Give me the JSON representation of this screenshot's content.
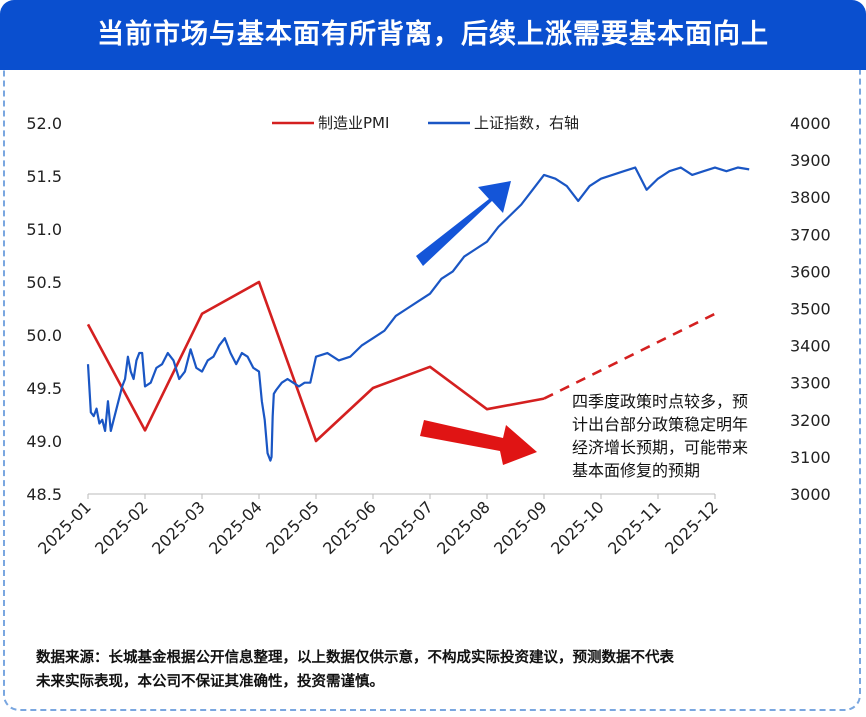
{
  "title": "当前市场与基本面有所背离，后续上涨需要基本面向上",
  "footer_lines": [
    "数据来源：长城基金根据公开信息整理，以上数据仅供示意，不构成实际投资建议，预测数据不代表",
    "未来实际表现，本公司不保证其准确性，投资需谨慎。"
  ],
  "annotation_lines": [
    "四季度政策时点较多，预",
    "计出台部分政策稳定明年",
    "经济增长预期，可能带来",
    "基本面修复的预期"
  ],
  "colors": {
    "pmi": "#d42020",
    "index": "#1a56c4",
    "title_bg": "#0a4fcf",
    "up_arrow": "#1455d8",
    "right_arrow": "#e01414"
  },
  "chart_data": {
    "type": "line",
    "x_labels": [
      "2025-01",
      "2025-02",
      "2025-03",
      "2025-04",
      "2025-05",
      "2025-06",
      "2025-07",
      "2025-08",
      "2025-09",
      "2025-10",
      "2025-11",
      "2025-12"
    ],
    "left_axis": {
      "ticks": [
        "48.5",
        "49.0",
        "49.5",
        "50.0",
        "50.5",
        "51.0",
        "51.5",
        "52.0"
      ],
      "range": [
        48.5,
        52.0
      ]
    },
    "right_axis": {
      "ticks": [
        "3000",
        "3100",
        "3200",
        "3300",
        "3400",
        "3500",
        "3600",
        "3700",
        "3800",
        "3900",
        "4000"
      ],
      "range": [
        3000,
        4000
      ]
    },
    "legend": {
      "position": "top-center"
    },
    "grid": false,
    "series": [
      {
        "name": "制造业PMI",
        "axis": "left",
        "x": [
          "2025-01",
          "2025-02",
          "2025-03",
          "2025-04",
          "2025-05",
          "2025-06",
          "2025-07",
          "2025-08",
          "2025-09"
        ],
        "values": [
          50.1,
          49.1,
          50.2,
          50.5,
          49.0,
          49.5,
          49.7,
          49.3,
          49.4
        ]
      },
      {
        "name": "",
        "axis": "left",
        "style": "dashed",
        "x": [
          "2025-09",
          "2025-12"
        ],
        "values": [
          49.4,
          50.2
        ]
      },
      {
        "name": "上证指数，右轴",
        "axis": "right",
        "x_index": [
          0,
          0.05,
          0.1,
          0.15,
          0.2,
          0.25,
          0.3,
          0.35,
          0.4,
          0.45,
          0.5,
          0.55,
          0.6,
          0.65,
          0.7,
          0.75,
          0.8,
          0.85,
          0.9,
          0.95,
          1,
          1.1,
          1.2,
          1.3,
          1.4,
          1.5,
          1.6,
          1.7,
          1.8,
          1.9,
          2,
          2.1,
          2.2,
          2.3,
          2.4,
          2.5,
          2.6,
          2.7,
          2.8,
          2.9,
          3,
          3.05,
          3.1,
          3.15,
          3.2,
          3.22,
          3.24,
          3.26,
          3.3,
          3.4,
          3.5,
          3.6,
          3.7,
          3.8,
          3.9,
          4,
          4.2,
          4.4,
          4.6,
          4.8,
          5,
          5.2,
          5.4,
          5.6,
          5.8,
          6,
          6.2,
          6.4,
          6.6,
          6.8,
          7,
          7.2,
          7.4,
          7.6,
          7.8,
          8,
          8.2,
          8.4,
          8.6,
          8.8,
          9,
          9.2,
          9.4,
          9.6,
          9.8,
          10,
          10.2,
          10.4,
          10.6,
          10.8,
          11,
          11.2,
          11.4,
          11.6
        ],
        "values": [
          3350,
          3220,
          3210,
          3230,
          3190,
          3200,
          3170,
          3250,
          3170,
          3200,
          3230,
          3260,
          3290,
          3310,
          3370,
          3330,
          3310,
          3360,
          3380,
          3380,
          3290,
          3300,
          3340,
          3350,
          3380,
          3360,
          3310,
          3330,
          3390,
          3340,
          3330,
          3360,
          3370,
          3400,
          3420,
          3380,
          3350,
          3380,
          3370,
          3340,
          3330,
          3250,
          3200,
          3110,
          3090,
          3100,
          3210,
          3270,
          3280,
          3300,
          3310,
          3300,
          3290,
          3300,
          3300,
          3370,
          3380,
          3360,
          3370,
          3400,
          3420,
          3440,
          3480,
          3500,
          3520,
          3540,
          3580,
          3600,
          3640,
          3660,
          3680,
          3720,
          3750,
          3780,
          3820,
          3860,
          3850,
          3830,
          3790,
          3830,
          3850,
          3860,
          3870,
          3880,
          3820,
          3850,
          3870,
          3880,
          3860,
          3870,
          3880,
          3870,
          3880,
          3875
        ]
      }
    ]
  }
}
